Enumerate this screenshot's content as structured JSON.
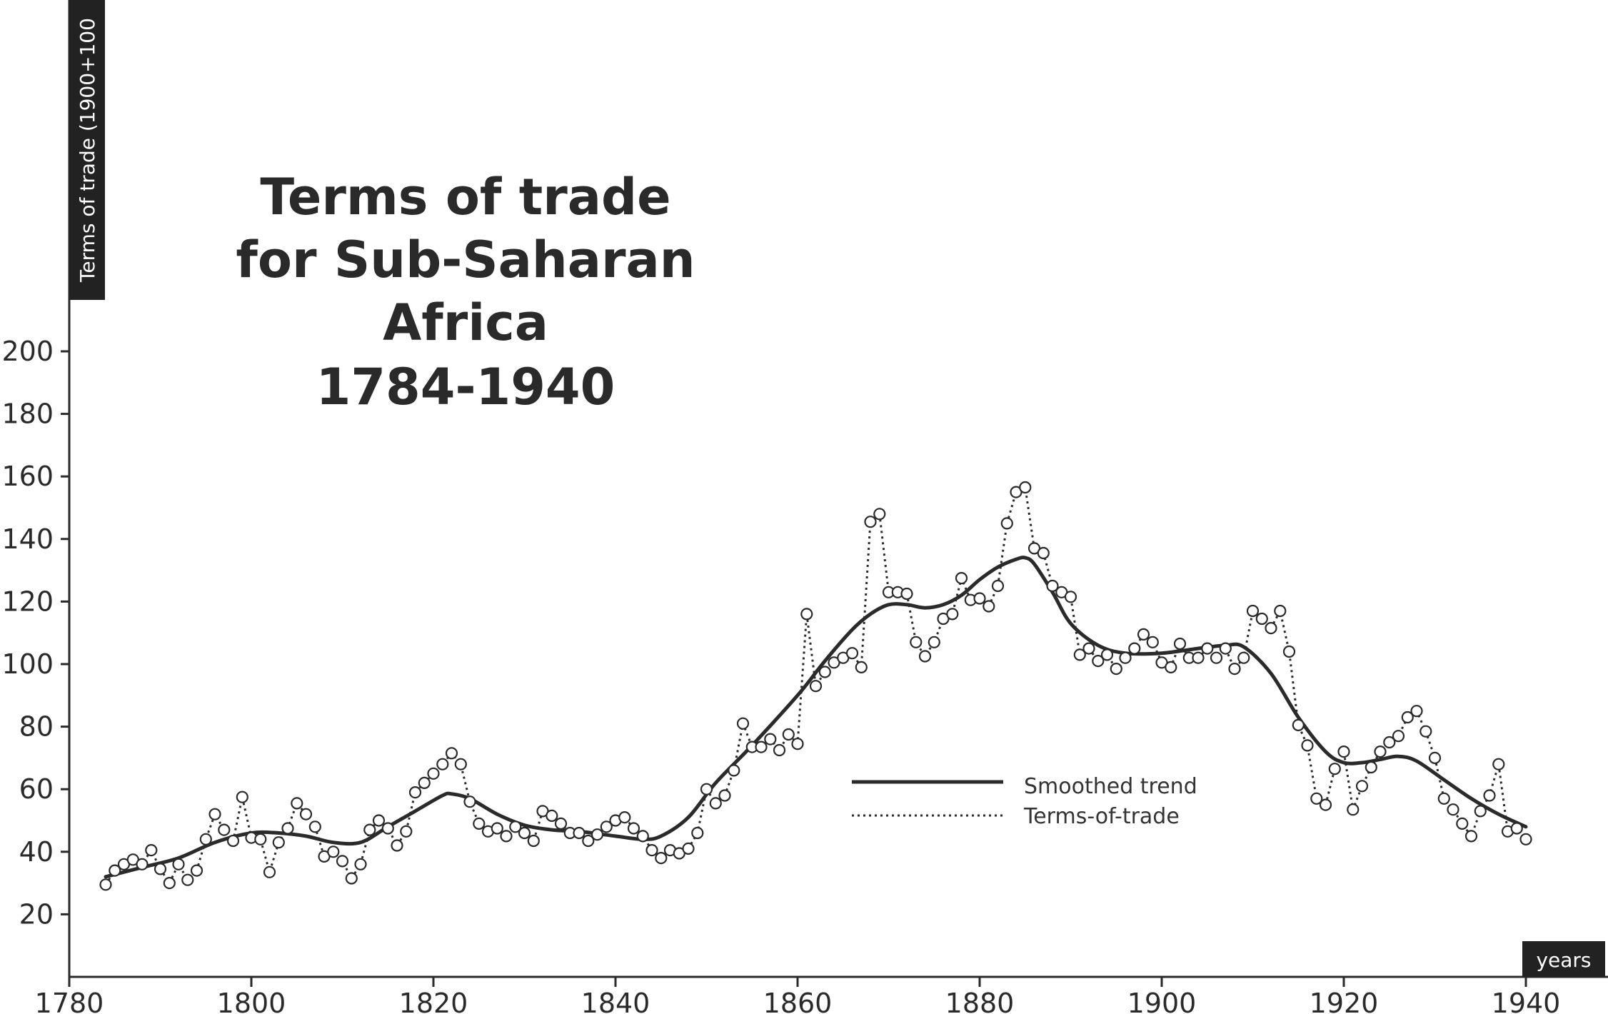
{
  "chart_data": {
    "type": "line",
    "title": [
      "Terms of trade",
      "for Sub-Saharan",
      "Africa",
      "1784-1940"
    ],
    "ylabel": "Terms of trade (1900+100",
    "xlabel": "years",
    "xlim": [
      1780,
      1942
    ],
    "ylim": [
      0,
      210
    ],
    "x_ticks": [
      "1780",
      "1800",
      "1820",
      "1840",
      "1860",
      "1880",
      "1900",
      "1920",
      "1940"
    ],
    "y_ticks": [
      "20",
      "40",
      "60",
      "80",
      "100",
      "120",
      "140",
      "160",
      "180",
      "200"
    ],
    "grid": false,
    "legend_position": "center-right",
    "colors": {
      "ink": "#2a2a2a",
      "tag_bg": "#222222",
      "marker_fill": "#ffffff"
    },
    "series": [
      {
        "name": "Smoothed trend",
        "style": "solid",
        "x": [
          1784,
          1788,
          1792,
          1796,
          1800,
          1803,
          1806,
          1809,
          1812,
          1815,
          1818,
          1821,
          1822,
          1824,
          1827,
          1830,
          1833,
          1836,
          1840,
          1843,
          1845,
          1848,
          1851,
          1855,
          1860,
          1863,
          1866,
          1868,
          1870,
          1872,
          1874,
          1876,
          1878,
          1880,
          1882,
          1884,
          1885,
          1886,
          1888,
          1890,
          1893,
          1896,
          1900,
          1904,
          1907,
          1909,
          1912,
          1915,
          1918,
          1920,
          1922,
          1924,
          1926,
          1928,
          1931,
          1934,
          1937,
          1940
        ],
        "y": [
          32,
          35,
          38,
          43,
          46,
          46,
          45,
          43,
          43,
          48,
          53,
          58,
          58.5,
          57,
          52,
          48.5,
          47,
          46.5,
          45,
          44,
          45,
          51,
          62,
          74,
          90,
          101,
          111,
          116,
          119,
          119,
          118,
          119,
          122,
          127,
          131,
          133.5,
          134,
          132,
          123,
          113,
          106,
          103.5,
          103.5,
          105,
          106,
          105.5,
          97,
          83,
          72,
          68.5,
          68.5,
          69.5,
          70.5,
          69,
          63,
          57,
          52,
          48
        ]
      },
      {
        "name": "Terms-of-trade",
        "style": "dotted",
        "x": [
          1784,
          1785,
          1786,
          1787,
          1788,
          1789,
          1790,
          1791,
          1792,
          1793,
          1794,
          1795,
          1796,
          1797,
          1798,
          1799,
          1800,
          1801,
          1802,
          1803,
          1804,
          1805,
          1806,
          1807,
          1808,
          1809,
          1810,
          1811,
          1812,
          1813,
          1814,
          1815,
          1816,
          1817,
          1818,
          1819,
          1820,
          1821,
          1822,
          1823,
          1824,
          1825,
          1826,
          1827,
          1828,
          1829,
          1830,
          1831,
          1832,
          1833,
          1834,
          1835,
          1836,
          1837,
          1838,
          1839,
          1840,
          1841,
          1842,
          1843,
          1844,
          1845,
          1846,
          1847,
          1848,
          1849,
          1850,
          1851,
          1852,
          1853,
          1854,
          1855,
          1856,
          1857,
          1858,
          1859,
          1860,
          1861,
          1862,
          1863,
          1864,
          1865,
          1866,
          1867,
          1868,
          1869,
          1870,
          1871,
          1872,
          1873,
          1874,
          1875,
          1876,
          1877,
          1878,
          1879,
          1880,
          1881,
          1882,
          1883,
          1884,
          1885,
          1886,
          1887,
          1888,
          1889,
          1890,
          1891,
          1892,
          1893,
          1894,
          1895,
          1896,
          1897,
          1898,
          1899,
          1900,
          1901,
          1902,
          1903,
          1904,
          1905,
          1906,
          1907,
          1908,
          1909,
          1910,
          1911,
          1912,
          1913,
          1914,
          1915,
          1916,
          1917,
          1918,
          1919,
          1920,
          1921,
          1922,
          1923,
          1924,
          1925,
          1926,
          1927,
          1928,
          1929,
          1930,
          1931,
          1932,
          1933,
          1934,
          1935,
          1936,
          1937,
          1938,
          1939,
          1940
        ],
        "y": [
          29.5,
          34,
          36,
          37.5,
          36,
          40.5,
          34.5,
          30,
          36,
          31,
          34,
          44,
          52,
          47,
          43.5,
          57.5,
          44.5,
          44,
          33.5,
          43,
          47.5,
          55.5,
          52,
          48,
          38.5,
          40,
          37,
          31.5,
          36,
          47,
          50,
          47.5,
          42,
          46.5,
          59,
          62,
          65,
          68,
          71.5,
          68,
          56,
          49,
          46.5,
          47.5,
          45,
          48,
          46,
          43.5,
          53,
          51.5,
          49,
          46,
          46,
          43.5,
          45.5,
          48,
          50,
          51,
          47.5,
          45,
          40.5,
          38,
          40.5,
          39.5,
          41,
          46,
          60,
          55.5,
          58,
          66,
          81,
          73.5,
          73.5,
          76,
          72.5,
          77.5,
          74.5,
          116,
          93,
          97.5,
          100.5,
          102,
          103.5,
          99,
          145.5,
          148,
          123,
          123,
          122.5,
          107,
          102.5,
          107,
          114.5,
          116,
          127.5,
          120.5,
          121,
          118.5,
          125,
          145,
          155,
          156.5,
          137,
          135.5,
          125,
          123,
          121.5,
          103,
          105,
          101,
          103,
          98.5,
          102,
          105,
          109.5,
          107,
          100.5,
          99,
          106.5,
          102,
          102,
          105,
          102,
          105,
          98.5,
          102,
          117,
          114.5,
          111.5,
          117,
          104,
          80.5,
          74,
          57,
          55,
          66.5,
          72,
          53.5,
          61,
          67,
          72,
          75,
          77,
          83,
          85,
          78.5,
          70,
          57,
          53.5,
          49,
          45,
          53,
          58,
          68,
          46.5,
          47.5,
          44
        ]
      }
    ]
  }
}
